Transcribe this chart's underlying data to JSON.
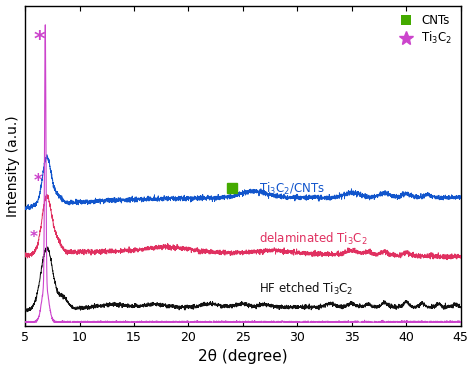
{
  "xlabel": "2θ (degree)",
  "ylabel": "Intensity (a.u.)",
  "xlim": [
    5,
    45
  ],
  "x_ticks": [
    5,
    10,
    15,
    20,
    25,
    30,
    35,
    40,
    45
  ],
  "line_colors": {
    "blue": "#1155cc",
    "red": "#e03060",
    "black": "#111111",
    "magenta": "#cc44cc"
  },
  "legend_cnts_color": "#44aa00",
  "legend_ti3c2_color": "#cc44cc",
  "label_blue": "Ti$_3$C$_2$/CNTs",
  "label_red": "delaminated Ti$_3$C$_2$",
  "label_black": "HF etched Ti$_3$C$_2$",
  "seed": 42
}
